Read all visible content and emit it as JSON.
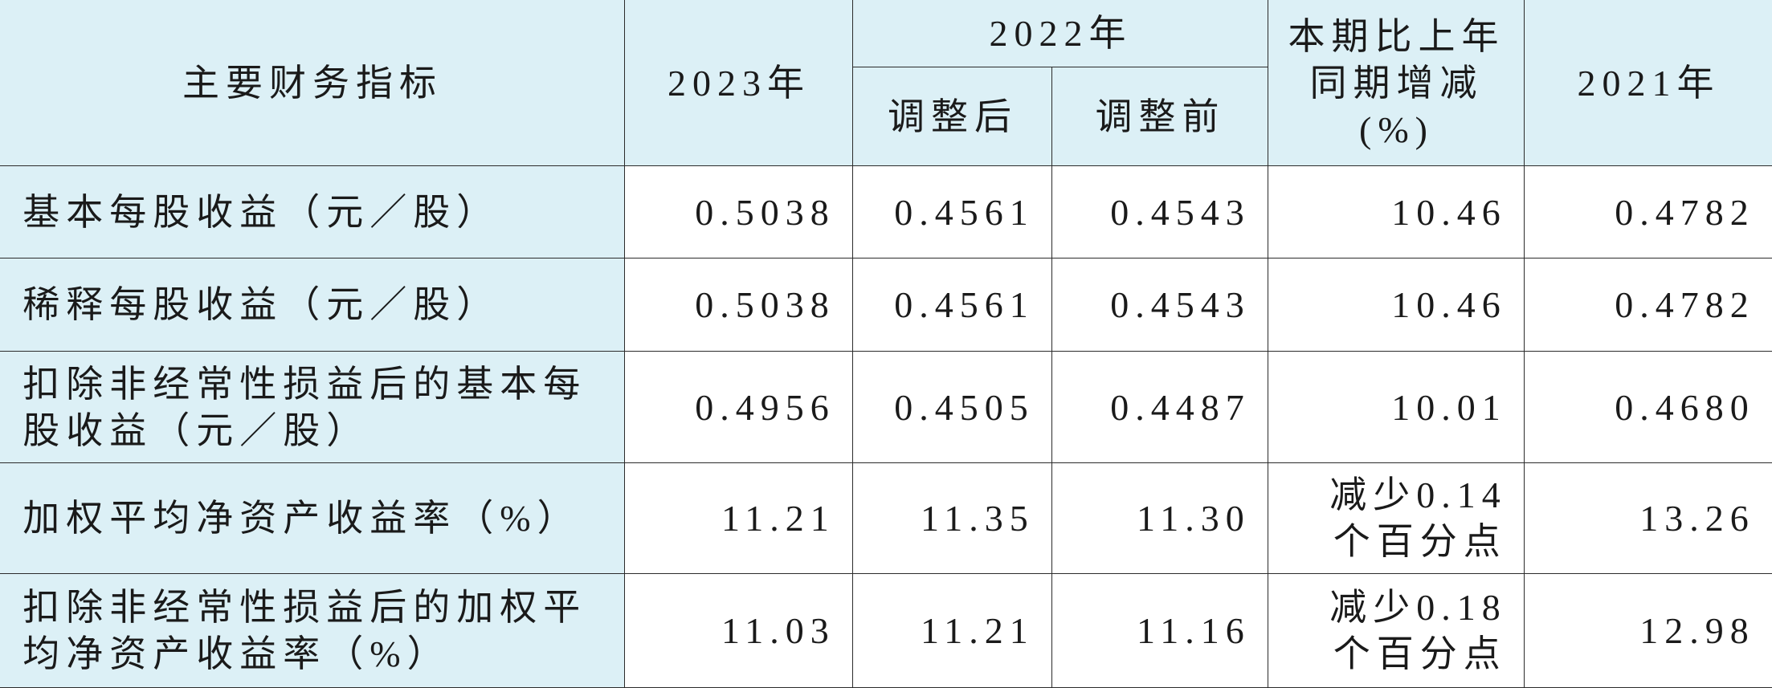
{
  "header": {
    "indicator": "主要财务指标",
    "y2023": "2023年",
    "y2022": "2022年",
    "adjusted_after": "调整后",
    "adjusted_before": "调整前",
    "change": [
      "本期比上年",
      "同期增减",
      "(%)"
    ],
    "y2021": "2021年"
  },
  "table": {
    "rows": [
      [
        "基本每股收益（元／股）",
        "0.5038",
        "0.4561",
        "0.4543",
        [
          "10.46"
        ],
        "0.4782"
      ],
      [
        "稀释每股收益（元／股）",
        "0.5038",
        "0.4561",
        "0.4543",
        [
          "10.46"
        ],
        "0.4782"
      ],
      [
        "扣除非经常性损益后的基本每股收益（元／股）",
        "0.4956",
        "0.4505",
        "0.4487",
        [
          "10.01"
        ],
        "0.4680"
      ],
      [
        "加权平均净资产收益率（%）",
        "11.21",
        "11.35",
        "11.30",
        [
          "减少0.14",
          "个百分点"
        ],
        "13.26"
      ],
      [
        "扣除非经常性损益后的加权平均净资产收益率（%）",
        "11.03",
        "11.21",
        "11.16",
        [
          "减少0.18",
          "个百分点"
        ],
        "12.98"
      ]
    ]
  }
}
